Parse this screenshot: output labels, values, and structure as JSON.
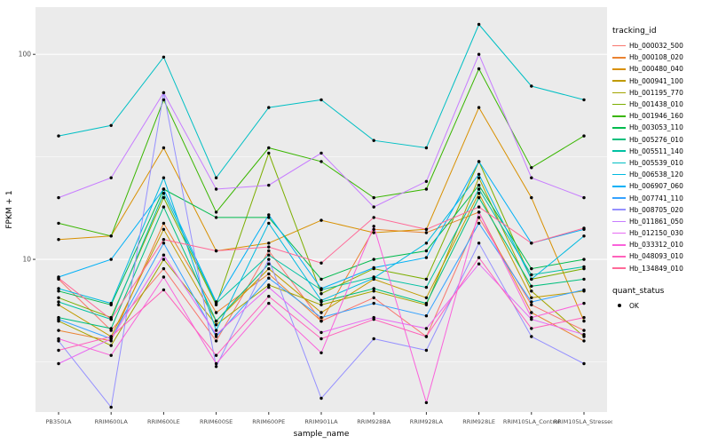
{
  "axes": {
    "y_label": "FPKM + 1",
    "x_label": "sample_name"
  },
  "legend": {
    "tracking_title": "tracking_id",
    "quant_title": "quant_status",
    "quant_items": [
      {
        "label": "OK"
      }
    ]
  },
  "chart_data": {
    "type": "line",
    "scale_y": "log10",
    "ylim": [
      1.8,
      170
    ],
    "point_color": "#000000",
    "panel_bg": "#EBEBEB",
    "grid_color": "#FFFFFF",
    "tick_label_color": "#4D4D4D",
    "y_ticks": [
      {
        "value": 100,
        "label": "100"
      },
      {
        "value": 10,
        "label": "10"
      }
    ],
    "y_minor": [
      3.1623,
      31.623
    ],
    "categories": [
      "PB350LA",
      "RRIM600LA",
      "RRIM600LE",
      "RRIM600SE",
      "RRIM600PE",
      "RRIM901LA",
      "RRIM928BA",
      "RRIM928LA",
      "RRIM928LE",
      "RRIM105LA_Control",
      "RRIM105LA_Stressed"
    ],
    "series": [
      {
        "name": "Hb_000032_500",
        "color": "#F8766D",
        "values": [
          8,
          4.5,
          9,
          4,
          11,
          5,
          6.5,
          4.2,
          16,
          6,
          4.5
        ]
      },
      {
        "name": "Hb_000108_020",
        "color": "#EA8331",
        "values": [
          4.5,
          4,
          15,
          5.5,
          8.5,
          5,
          14,
          13.5,
          17,
          5.5,
          4
        ]
      },
      {
        "name": "Hb_000480_040",
        "color": "#D89000",
        "values": [
          12.5,
          13,
          35,
          11,
          12,
          15.5,
          13.5,
          14,
          55,
          20,
          5
        ]
      },
      {
        "name": "Hb_000941_100",
        "color": "#C09B00",
        "values": [
          6,
          4.2,
          14,
          5,
          9,
          5.5,
          8,
          6.5,
          21,
          6.5,
          7
        ]
      },
      {
        "name": "Hb_001195_770",
        "color": "#A3A500",
        "values": [
          5,
          3.8,
          10,
          4.8,
          7.5,
          6,
          7,
          6,
          25,
          7,
          4.2
        ]
      },
      {
        "name": "Hb_001438_010",
        "color": "#7CAE00",
        "values": [
          6.5,
          5.2,
          20,
          6,
          33,
          6.8,
          9,
          8,
          30,
          8,
          9
        ]
      },
      {
        "name": "Hb_001946_160",
        "color": "#39B600",
        "values": [
          15,
          13,
          60,
          17,
          35,
          30,
          20,
          22,
          85,
          28,
          40
        ]
      },
      {
        "name": "Hb_003053_110",
        "color": "#00BB4E",
        "values": [
          7,
          6,
          22,
          16,
          16,
          8,
          10,
          11,
          23,
          9,
          10
        ]
      },
      {
        "name": "Hb_005276_010",
        "color": "#00BF7D",
        "values": [
          5.2,
          4.6,
          18,
          5,
          9.5,
          6.2,
          7.2,
          6.1,
          20,
          7.4,
          8
        ]
      },
      {
        "name": "Hb_005511_140",
        "color": "#00C1A3",
        "values": [
          6.2,
          5.1,
          21,
          6.1,
          10.5,
          7.1,
          8.2,
          7.3,
          22,
          8.4,
          9.2
        ]
      },
      {
        "name": "Hb_005539_010",
        "color": "#00BFC4",
        "values": [
          40,
          45,
          97,
          25,
          55,
          60,
          38,
          35,
          140,
          70,
          60
        ]
      },
      {
        "name": "Hb_006538_120",
        "color": "#00BAE0",
        "values": [
          7.2,
          6.1,
          25,
          4.5,
          15,
          6.3,
          8.1,
          12,
          26,
          8,
          13
        ]
      },
      {
        "name": "Hb_006907_060",
        "color": "#00B0F6",
        "values": [
          8.2,
          10,
          22,
          6.2,
          16.5,
          7.2,
          9.1,
          10.2,
          30,
          12,
          14
        ]
      },
      {
        "name": "Hb_007741_110",
        "color": "#35A2FF",
        "values": [
          5.1,
          4.1,
          12,
          4.2,
          8.1,
          5.2,
          6.1,
          5.3,
          15,
          6.2,
          7.1
        ]
      },
      {
        "name": "Hb_008705_020",
        "color": "#9590FF",
        "values": [
          4,
          1.9,
          65,
          3,
          10,
          2.1,
          4.1,
          3.6,
          12,
          4.2,
          3.1
        ]
      },
      {
        "name": "Hb_011861_050",
        "color": "#C77CFF",
        "values": [
          20,
          25,
          65,
          22,
          23,
          33,
          18,
          24,
          100,
          25,
          20
        ]
      },
      {
        "name": "Hb_012150_030",
        "color": "#E76BF3",
        "values": [
          3.1,
          4.1,
          10.5,
          4.3,
          7.3,
          4.4,
          5.2,
          4.6,
          9.5,
          5.1,
          4.3
        ]
      },
      {
        "name": "Hb_033312_010",
        "color": "#FA62DB",
        "values": [
          4.1,
          3.4,
          8.2,
          3.1,
          6.1,
          3.5,
          14.5,
          2,
          17,
          5.2,
          6.1
        ]
      },
      {
        "name": "Hb_048093_010",
        "color": "#FF62BC",
        "values": [
          3.6,
          4.2,
          7.1,
          3.4,
          6.6,
          4.1,
          5.1,
          4.2,
          10.2,
          4.6,
          5.2
        ]
      },
      {
        "name": "Hb_134849_010",
        "color": "#FF6A98",
        "values": [
          8.1,
          5.1,
          12.5,
          11,
          11.5,
          9.6,
          16,
          14,
          18,
          12,
          14.2
        ]
      }
    ]
  }
}
